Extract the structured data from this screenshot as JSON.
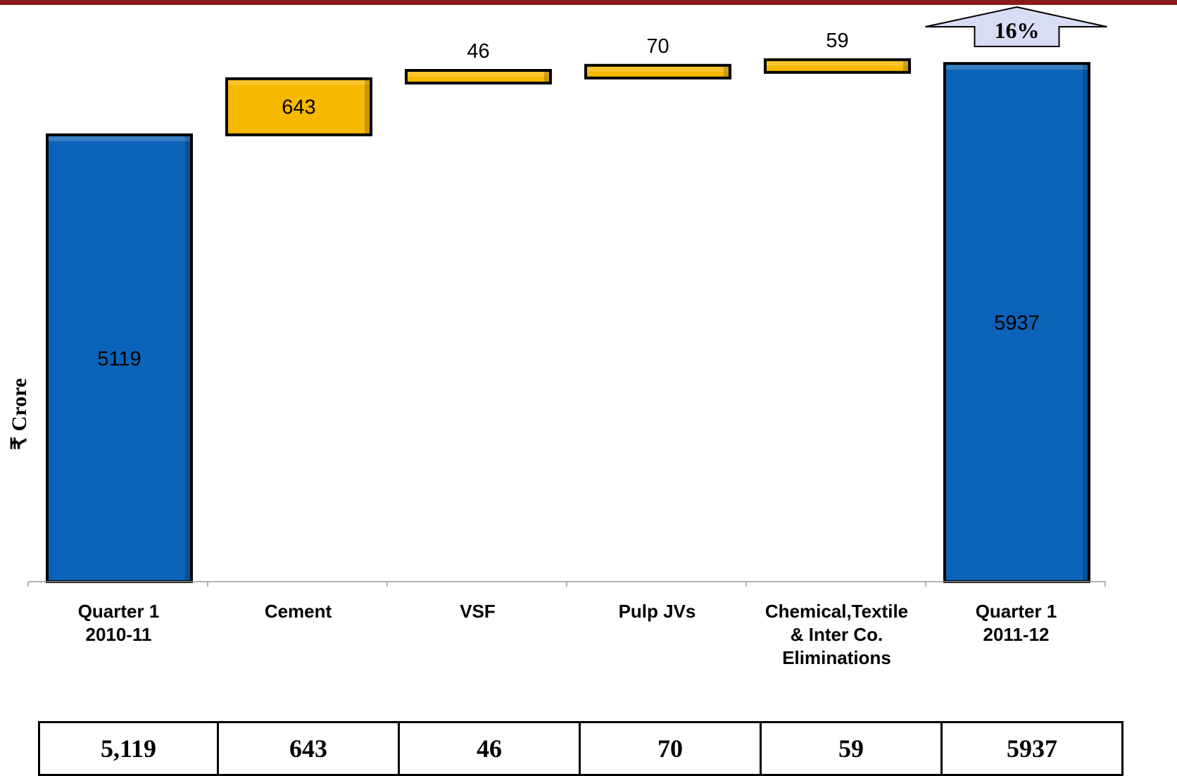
{
  "style": {
    "top_bar_color": "#8b1a1a",
    "total_color": "#0a63b8",
    "change_color": "#f7b800",
    "badge_color": "#d9dcf5"
  },
  "chart_data": {
    "type": "bar",
    "subtype": "waterfall",
    "ylabel": "₹ Crore",
    "categories": [
      [
        "Quarter 1",
        "2010-11"
      ],
      [
        "Cement"
      ],
      [
        "VSF"
      ],
      [
        "Pulp JVs"
      ],
      [
        "Chemical,Textile",
        "& Inter Co.",
        "Eliminations"
      ],
      [
        "Quarter 1",
        "2011-12"
      ]
    ],
    "values": [
      5119,
      643,
      46,
      70,
      59,
      5937
    ],
    "kinds": [
      "total",
      "change",
      "change",
      "change",
      "change",
      "total"
    ],
    "data_labels": [
      "5119",
      "643",
      "46",
      "70",
      "59",
      "5937"
    ],
    "ylim": [
      0,
      6180
    ],
    "grid": false,
    "growth_badge": "16%"
  },
  "table": {
    "values": [
      "5,119",
      "643",
      "46",
      "70",
      "59",
      "5937"
    ]
  }
}
